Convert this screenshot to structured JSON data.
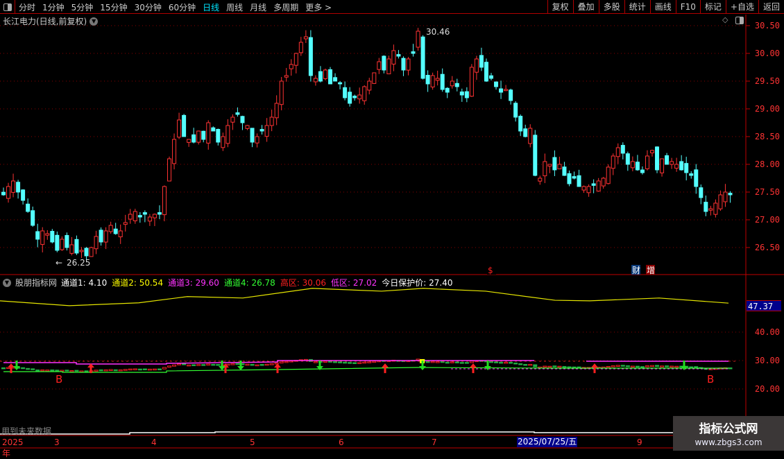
{
  "toolbar": {
    "periods": [
      "分时",
      "1分钟",
      "5分钟",
      "15分钟",
      "30分钟",
      "60分钟",
      "日线",
      "周线",
      "月线",
      "多周期",
      "更多 >"
    ],
    "active_period": "日线",
    "buttons": [
      "复权",
      "叠加",
      "多股",
      "统计",
      "画线",
      "F10",
      "标记",
      "+自选",
      "返回"
    ]
  },
  "chart": {
    "title": "长江电力(日线,前复权)",
    "high_label": "30.46",
    "low_label": "26.25",
    "price_ticks": [
      "30.50",
      "30.00",
      "29.50",
      "29.00",
      "28.50",
      "28.00",
      "27.50",
      "27.00",
      "26.50"
    ],
    "closes": [
      27.45,
      27.6,
      27.7,
      27.5,
      27.35,
      27.15,
      26.9,
      26.65,
      26.8,
      26.75,
      26.6,
      26.45,
      26.65,
      26.5,
      26.55,
      26.4,
      26.45,
      26.35,
      26.5,
      26.7,
      26.6,
      26.8,
      26.9,
      26.75,
      26.8,
      26.95,
      27.1,
      27.15,
      27.05,
      27.1,
      27.05,
      27.1,
      27.1,
      27.6,
      28.1,
      28.45,
      28.8,
      28.5,
      28.45,
      28.4,
      28.6,
      28.45,
      28.75,
      28.6,
      28.4,
      28.5,
      28.7,
      28.85,
      28.9,
      28.75,
      28.7,
      28.4,
      28.5,
      28.6,
      28.7,
      28.85,
      29.1,
      29.5,
      29.6,
      29.8,
      30.0,
      30.2,
      30.3,
      29.6,
      29.55,
      29.5,
      29.7,
      29.45,
      29.5,
      29.45,
      29.2,
      29.1,
      29.2,
      29.25,
      29.4,
      29.5,
      29.65,
      29.85,
      29.7,
      29.9,
      30.05,
      29.95,
      29.7,
      29.9,
      30.0,
      30.4,
      29.55,
      29.45,
      29.6,
      29.55,
      29.35,
      29.3,
      29.5,
      29.4,
      29.25,
      29.2,
      29.75,
      29.9,
      29.75,
      29.5,
      29.55,
      29.4,
      29.3,
      29.35,
      29.15,
      28.85,
      28.6,
      28.5,
      28.65,
      27.8,
      27.75,
      28.05,
      28.0,
      27.9,
      28.0,
      27.8,
      27.65,
      27.75,
      27.6,
      27.6,
      27.6,
      27.62,
      27.7,
      27.75,
      27.95,
      28.15,
      28.3,
      28.2,
      28.0,
      28.05,
      27.9,
      27.85,
      28.15,
      28.25,
      27.9,
      28.1,
      28.0,
      28.05,
      28.0,
      27.9,
      27.85,
      27.8,
      27.6,
      27.4,
      27.15,
      27.2,
      27.3,
      27.45,
      27.5,
      27.45
    ],
    "colors": {
      "up": "#ff3333",
      "down": "#54ffff"
    },
    "event_markers": [
      {
        "label": "$",
        "bg": "#000",
        "color": "#ff2020"
      },
      {
        "label": "财",
        "bg": "#0b3b7a",
        "color": "#fff"
      },
      {
        "label": "增",
        "bg": "#8b0000",
        "color": "#fff"
      }
    ]
  },
  "indicator": {
    "name": "股朋指标网",
    "values": [
      {
        "label": "通道1: 4.10",
        "color": "#ffffff"
      },
      {
        "label": "通道2: 50.54",
        "color": "#ffff00"
      },
      {
        "label": "通道3: 29.60",
        "color": "#ff33ff"
      },
      {
        "label": "通道4: 26.78",
        "color": "#33ff33"
      },
      {
        "label": "高区: 30.06",
        "color": "#ff2020"
      },
      {
        "label": "低区: 27.02",
        "color": "#ff33ff"
      },
      {
        "label": "今日保护价: 27.40",
        "color": "#ffffff"
      }
    ],
    "current_value": "47.37",
    "ticks": [
      "40.00",
      "30.00",
      "20.00"
    ],
    "yellow_line": [
      51,
      49.3,
      50.3,
      52.5,
      52,
      55.4,
      54.4,
      55.4,
      54.4,
      51.2,
      51,
      52,
      50.2
    ],
    "buy_label": "B"
  },
  "bottom": {
    "warning": "用到未来数据"
  },
  "dates": {
    "year": "2025年",
    "months": [
      "3",
      "4",
      "5",
      "6",
      "7",
      "9"
    ],
    "cursor_date": "2025/07/25/五"
  },
  "watermark": {
    "name": "指标公式网",
    "url": "www.zbgs3.com"
  }
}
